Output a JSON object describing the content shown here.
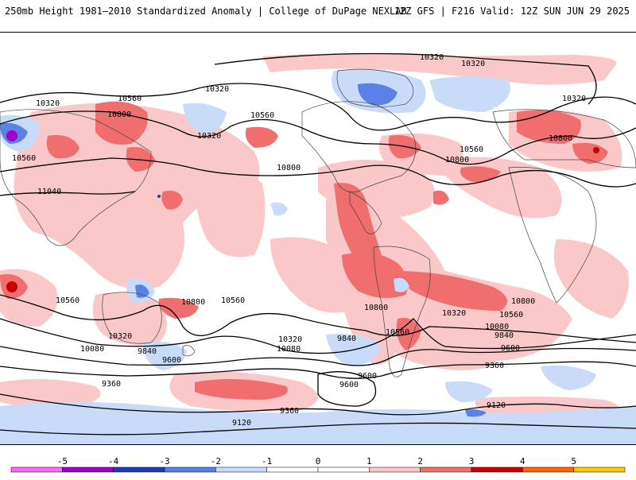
{
  "header": {
    "title_left": "250mb Height 1981–2010 Standardized Anomaly | College of DuPage NEXLAB",
    "title_right": "12Z GFS | F216 Valid: 12Z SUN JUN 29 2025"
  },
  "contour_labels": [
    {
      "id": "c1",
      "text": "10320"
    },
    {
      "id": "c2",
      "text": "10320"
    },
    {
      "id": "c3",
      "text": "10320"
    },
    {
      "id": "c4",
      "text": "10320"
    },
    {
      "id": "c5",
      "text": "10560"
    },
    {
      "id": "c6",
      "text": "10800"
    },
    {
      "id": "c7",
      "text": "10560"
    },
    {
      "id": "c8",
      "text": "10320"
    },
    {
      "id": "c9",
      "text": "10800"
    },
    {
      "id": "c10",
      "text": "10320"
    },
    {
      "id": "c11",
      "text": "10560"
    },
    {
      "id": "c12",
      "text": "10800"
    },
    {
      "id": "c13",
      "text": "10800"
    },
    {
      "id": "c14",
      "text": "10560"
    },
    {
      "id": "c15",
      "text": "11040"
    },
    {
      "id": "c16",
      "text": "10560"
    },
    {
      "id": "c17",
      "text": "10800"
    },
    {
      "id": "c18",
      "text": "10560"
    },
    {
      "id": "c19",
      "text": "10320"
    },
    {
      "id": "c20",
      "text": "10080"
    },
    {
      "id": "c21",
      "text": "9840"
    },
    {
      "id": "c22",
      "text": "9600"
    },
    {
      "id": "c23",
      "text": "10320"
    },
    {
      "id": "c24",
      "text": "10080"
    },
    {
      "id": "c25",
      "text": "9840"
    },
    {
      "id": "c26",
      "text": "9600"
    },
    {
      "id": "c27",
      "text": "9600"
    },
    {
      "id": "c28",
      "text": "10800"
    },
    {
      "id": "c29",
      "text": "10560"
    },
    {
      "id": "c30",
      "text": "10320"
    },
    {
      "id": "c31",
      "text": "10560"
    },
    {
      "id": "c32",
      "text": "10080"
    },
    {
      "id": "c33",
      "text": "9840"
    },
    {
      "id": "c34",
      "text": "9600"
    },
    {
      "id": "c35",
      "text": "10800"
    },
    {
      "id": "c36",
      "text": "9360"
    },
    {
      "id": "c37",
      "text": "9360"
    },
    {
      "id": "c38",
      "text": "9360"
    },
    {
      "id": "c39",
      "text": "9120"
    },
    {
      "id": "c40",
      "text": "9120"
    }
  ],
  "colorbar": {
    "ticks": [
      "-5",
      "-4",
      "-3",
      "-2",
      "-1",
      "0",
      "1",
      "2",
      "3",
      "4",
      "5"
    ],
    "colors": {
      "neg5": "#ff66ff",
      "neg4": "#a000c8",
      "neg3": "#1e3cb4",
      "neg2": "#5a82e6",
      "neg1": "#c8dcfa",
      "zero": "#ffffff",
      "pos1": "#fac8c8",
      "pos2": "#f06e6e",
      "pos3": "#c80000",
      "pos4": "#ff6400",
      "pos5": "#ffc800"
    }
  }
}
